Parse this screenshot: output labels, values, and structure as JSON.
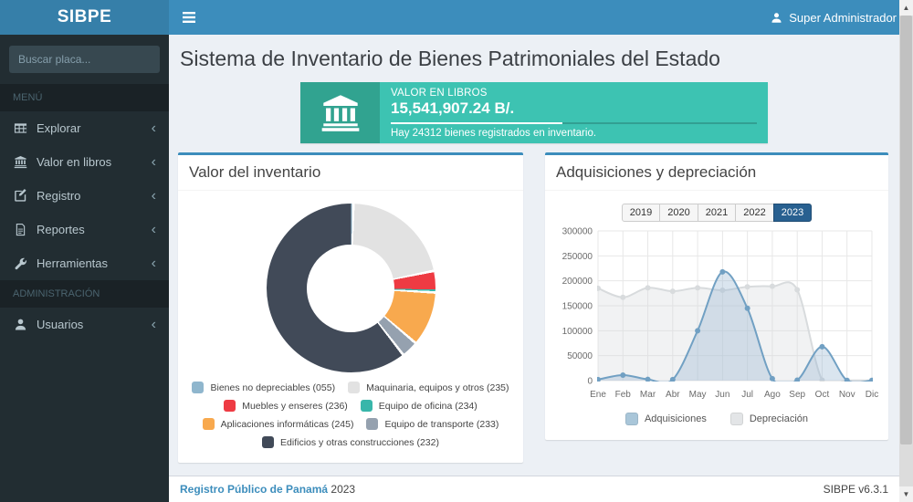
{
  "header": {
    "brand": "SIBPE",
    "user": "Super Administrador"
  },
  "sidebar": {
    "search_placeholder": "Buscar placa...",
    "sections": [
      {
        "label": "MENÚ",
        "items": [
          {
            "icon": "table-icon",
            "label": "Explorar"
          },
          {
            "icon": "bank-icon",
            "label": "Valor en libros"
          },
          {
            "icon": "edit-icon",
            "label": "Registro"
          },
          {
            "icon": "file-icon",
            "label": "Reportes"
          },
          {
            "icon": "wrench-icon",
            "label": "Herramientas"
          }
        ]
      },
      {
        "label": "ADMINISTRACIÓN",
        "items": [
          {
            "icon": "user-icon",
            "label": "Usuarios"
          }
        ]
      }
    ]
  },
  "main": {
    "page_title": "Sistema de Inventario de Bienes Patrimoniales del Estado",
    "info_box": {
      "label": "VALOR EN LIBROS",
      "value": "15,541,907.24 B/.",
      "progress_percent": 47,
      "description": "Hay 24312 bienes registrados en inventario."
    },
    "inventory_panel_title": "Valor del inventario",
    "acquisitions_panel_title": "Adquisiciones y depreciación",
    "year_buttons": [
      "2019",
      "2020",
      "2021",
      "2022",
      "2023"
    ],
    "active_year": "2023"
  },
  "footer": {
    "left_link": "Registro Público de Panamá",
    "left_year": "2023",
    "right": "SIBPE v6.3.1"
  },
  "colors": {
    "navbar": "#3c8dbc",
    "logo_bg": "#367fa9",
    "sidebar_bg": "#222d32",
    "content_bg": "#ecf0f5",
    "infobox_body": "#3dc3b2",
    "infobox_icon_bg": "#31a390",
    "active_year_btn": "#286090"
  },
  "chart_data": [
    {
      "type": "pie",
      "donut": true,
      "title": "Valor del inventario",
      "labels": [
        "Bienes no depreciables (055)",
        "Maquinaria, equipos y otros (235)",
        "Muebles y enseres (236)",
        "Equipo de oficina (234)",
        "Aplicaciones informáticas (245)",
        "Equipo de transporte (233)",
        "Edificios y otras construcciones (232)"
      ],
      "values": [
        0.2,
        21.3,
        3.8,
        0.3,
        10.4,
        3.2,
        60.8
      ],
      "values_unit": "percent-estimated-from-arc-angles",
      "colors": [
        "#8fb6cd",
        "#e2e2e2",
        "#ee3b43",
        "#38b6aa",
        "#f8a94e",
        "#95a1af",
        "#414a58"
      ],
      "legend_position": "bottom"
    },
    {
      "type": "line",
      "title": "Adquisiciones y depreciación",
      "categories": [
        "Ene",
        "Feb",
        "Mar",
        "Abr",
        "May",
        "Jun",
        "Jul",
        "Ago",
        "Sep",
        "Oct",
        "Nov",
        "Dic"
      ],
      "series": [
        {
          "name": "Adquisiciones",
          "values": [
            2000,
            11000,
            2500,
            2000,
            100000,
            218000,
            145000,
            4000,
            1000,
            68000,
            500,
            500
          ],
          "line_color": "#71a0c3",
          "fill_color": "rgba(148,181,208,0.35)",
          "legend_color": "#a9c6d9"
        },
        {
          "name": "Depreciación",
          "values": [
            185000,
            167000,
            186000,
            179000,
            186000,
            181000,
            188000,
            189000,
            182000,
            1000,
            500,
            500
          ],
          "line_color": "#d8dbdd",
          "fill_color": "rgba(216,219,221,0.35)",
          "legend_color": "#e3e5e7"
        }
      ],
      "ylim": [
        0,
        300000
      ],
      "ytick_step": 50000,
      "grid": true,
      "legend_position": "bottom",
      "smoothing": true
    }
  ]
}
